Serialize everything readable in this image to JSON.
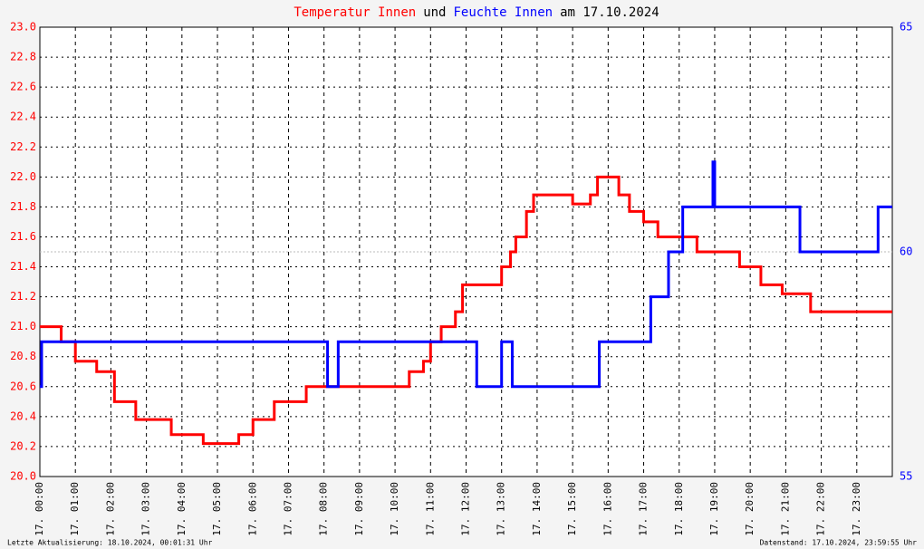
{
  "chart_data": {
    "type": "line",
    "title_parts": [
      {
        "text": "Temperatur Innen",
        "color": "#ff0000"
      },
      {
        "text": "und",
        "color": "#000000"
      },
      {
        "text": "Feuchte Innen",
        "color": "#0000ff"
      },
      {
        "text": "am 17.10.2024",
        "color": "#000000"
      }
    ],
    "footer_left": "Letzte Aktualisierung: 18.10.2024, 00:01:31 Uhr",
    "footer_right": "Datenstand: 17.10.2024, 23:59:55 Uhr",
    "xlim": [
      0,
      24
    ],
    "xticks": [
      {
        "value": 0,
        "label": "17. 00:00"
      },
      {
        "value": 1,
        "label": "17. 01:00"
      },
      {
        "value": 2,
        "label": "17. 02:00"
      },
      {
        "value": 3,
        "label": "17. 03:00"
      },
      {
        "value": 4,
        "label": "17. 04:00"
      },
      {
        "value": 5,
        "label": "17. 05:00"
      },
      {
        "value": 6,
        "label": "17. 06:00"
      },
      {
        "value": 7,
        "label": "17. 07:00"
      },
      {
        "value": 8,
        "label": "17. 08:00"
      },
      {
        "value": 9,
        "label": "17. 09:00"
      },
      {
        "value": 10,
        "label": "17. 10:00"
      },
      {
        "value": 11,
        "label": "17. 11:00"
      },
      {
        "value": 12,
        "label": "17. 12:00"
      },
      {
        "value": 13,
        "label": "17. 13:00"
      },
      {
        "value": 14,
        "label": "17. 14:00"
      },
      {
        "value": 15,
        "label": "17. 15:00"
      },
      {
        "value": 16,
        "label": "17. 16:00"
      },
      {
        "value": 17,
        "label": "17. 17:00"
      },
      {
        "value": 18,
        "label": "17. 18:00"
      },
      {
        "value": 19,
        "label": "17. 19:00"
      },
      {
        "value": 20,
        "label": "17. 20:00"
      },
      {
        "value": 21,
        "label": "17. 21:00"
      },
      {
        "value": 22,
        "label": "17. 22:00"
      },
      {
        "value": 23,
        "label": "17. 23:00"
      }
    ],
    "ylim": [
      20,
      23
    ],
    "yticks": [
      {
        "value": 20,
        "label": "20.0"
      },
      20.2,
      20.4,
      20.6,
      20.8,
      {
        "value": 21,
        "label": "21.0"
      },
      21.2,
      21.4,
      21.6,
      21.8,
      {
        "value": 22,
        "label": "22.0"
      },
      22.2,
      22.4,
      22.6,
      22.8,
      {
        "value": 23,
        "label": "23.0"
      }
    ],
    "y2lim": [
      55,
      65
    ],
    "y2ticks": [
      55,
      60,
      65
    ],
    "grid": true,
    "series": [
      {
        "name": "Temperatur Innen",
        "color": "#ff0000",
        "axis": "y",
        "x": [
          0,
          0.6,
          0.6,
          1.0,
          1.0,
          1.6,
          1.6,
          2.1,
          2.1,
          2.7,
          2.7,
          3.7,
          3.7,
          4.6,
          4.6,
          5.6,
          5.6,
          6.0,
          6.0,
          6.6,
          6.6,
          7.5,
          7.5,
          10.4,
          10.4,
          10.8,
          10.8,
          11.0,
          11.0,
          11.3,
          11.3,
          11.7,
          11.7,
          11.9,
          11.9,
          13.0,
          13.0,
          13.25,
          13.25,
          13.4,
          13.4,
          13.7,
          13.7,
          13.9,
          13.9,
          15.0,
          15.0,
          15.5,
          15.5,
          15.7,
          15.7,
          16.3,
          16.3,
          16.6,
          16.6,
          17.0,
          17.0,
          17.4,
          17.4,
          18.5,
          18.5,
          19.7,
          19.7,
          20.3,
          20.3,
          20.9,
          20.9,
          21.7,
          21.7,
          24
        ],
        "values": [
          21.0,
          21.0,
          20.9,
          20.9,
          20.77,
          20.77,
          20.7,
          20.7,
          20.5,
          20.5,
          20.38,
          20.38,
          20.28,
          20.28,
          20.22,
          20.22,
          20.28,
          20.28,
          20.38,
          20.38,
          20.5,
          20.5,
          20.6,
          20.6,
          20.7,
          20.7,
          20.77,
          20.77,
          20.9,
          20.9,
          21.0,
          21.0,
          21.1,
          21.1,
          21.28,
          21.28,
          21.4,
          21.4,
          21.5,
          21.5,
          21.6,
          21.6,
          21.77,
          21.77,
          21.88,
          21.88,
          21.82,
          21.82,
          21.88,
          21.88,
          22.0,
          22.0,
          21.88,
          21.88,
          21.77,
          21.77,
          21.7,
          21.7,
          21.6,
          21.6,
          21.5,
          21.5,
          21.4,
          21.4,
          21.28,
          21.28,
          21.22,
          21.22,
          21.1,
          21.1
        ]
      },
      {
        "name": "Feuchte Innen",
        "color": "#0000ff",
        "axis": "y2",
        "x": [
          0,
          0.05,
          0.05,
          8.1,
          8.1,
          8.4,
          8.4,
          12.3,
          12.3,
          13.0,
          13.0,
          13.3,
          13.3,
          15.75,
          15.75,
          17.2,
          17.2,
          17.7,
          17.7,
          18.1,
          18.1,
          18.95,
          18.95,
          19.0,
          19.0,
          21.4,
          21.4,
          23.6,
          23.6,
          24
        ],
        "values": [
          57,
          57,
          58,
          58,
          57,
          57,
          58,
          58,
          57,
          57,
          58,
          58,
          57,
          57,
          58,
          58,
          59,
          59,
          60,
          60,
          61,
          61,
          62,
          62,
          61,
          61,
          60,
          60,
          61,
          61
        ]
      }
    ]
  }
}
